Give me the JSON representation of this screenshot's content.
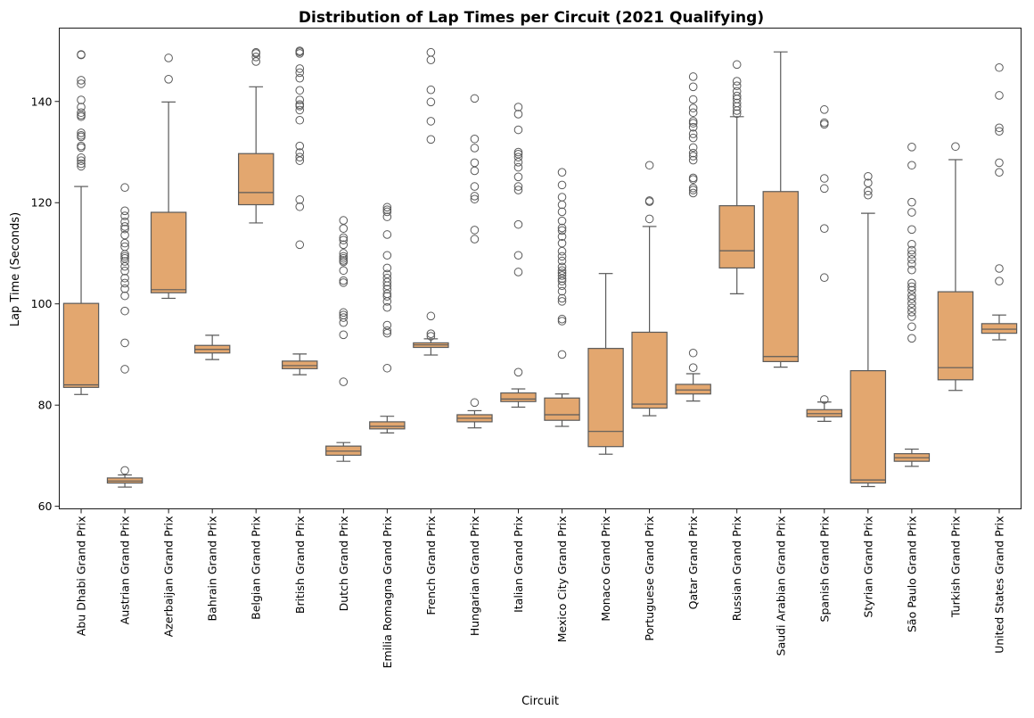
{
  "chart_data": {
    "type": "box",
    "title": "Distribution of Lap Times per Circuit (2021 Qualifying)",
    "xlabel": "Circuit",
    "ylabel": "Lap Time (Seconds)",
    "ylim": [
      59.5,
      154.5
    ],
    "yticks": [
      60,
      80,
      100,
      120,
      140
    ],
    "grid": false,
    "box_color": "#E3A76F",
    "line_color": "#5a5a5a",
    "categories": [
      "Abu Dhabi Grand Prix",
      "Austrian Grand Prix",
      "Azerbaijan Grand Prix",
      "Bahrain Grand Prix",
      "Belgian Grand Prix",
      "British Grand Prix",
      "Dutch Grand Prix",
      "Emilia Romagna Grand Prix",
      "French Grand Prix",
      "Hungarian Grand Prix",
      "Italian Grand Prix",
      "Mexico City Grand Prix",
      "Monaco Grand Prix",
      "Portuguese Grand Prix",
      "Qatar Grand Prix",
      "Russian Grand Prix",
      "Saudi Arabian Grand Prix",
      "Spanish Grand Prix",
      "Styrian Grand Prix",
      "São Paulo Grand Prix",
      "Turkish Grand Prix",
      "United States Grand Prix"
    ],
    "boxes": [
      {
        "whislo": 82.1,
        "q1": 83.5,
        "med": 84.0,
        "q3": 100.1,
        "whishi": 123.2,
        "fliers": [
          149.2,
          149.3,
          144.2,
          143.5,
          140.3,
          138.9,
          137.8,
          137.3,
          137.0,
          133.8,
          133.3,
          133.0,
          131.2,
          130.9,
          128.9,
          128.3,
          127.7,
          127.2
        ]
      },
      {
        "whislo": 63.8,
        "q1": 64.6,
        "med": 65.0,
        "q3": 65.6,
        "whishi": 66.2,
        "fliers": [
          67.1,
          87.1,
          92.3,
          98.6,
          101.6,
          103.0,
          104.1,
          105.1,
          106.5,
          107.4,
          108.4,
          109.0,
          109.4,
          109.8,
          111.3,
          112.0,
          113.6,
          114.8,
          115.3,
          116.2,
          117.4,
          118.4,
          123.0
        ]
      },
      {
        "whislo": 101.1,
        "q1": 102.2,
        "med": 102.8,
        "q3": 118.1,
        "whishi": 139.9,
        "fliers": [
          144.4,
          148.6
        ]
      },
      {
        "whislo": 89.0,
        "q1": 90.3,
        "med": 91.0,
        "q3": 91.8,
        "whishi": 93.8,
        "fliers": []
      },
      {
        "whislo": 116.0,
        "q1": 119.6,
        "med": 122.0,
        "q3": 129.7,
        "whishi": 142.9,
        "fliers": [
          147.9,
          148.8,
          149.5,
          149.7
        ]
      },
      {
        "whislo": 86.0,
        "q1": 87.2,
        "med": 87.8,
        "q3": 88.7,
        "whishi": 90.1,
        "fliers": [
          111.7,
          119.2,
          120.6,
          128.3,
          129.0,
          129.9,
          131.2,
          136.3,
          138.3,
          139.1,
          139.4,
          140.3,
          142.2,
          144.6,
          145.7,
          146.5,
          149.5,
          149.8,
          150.0
        ]
      },
      {
        "whislo": 68.9,
        "q1": 70.1,
        "med": 70.9,
        "q3": 71.9,
        "whishi": 72.6,
        "fliers": [
          84.6,
          93.9,
          96.3,
          97.3,
          97.8,
          98.3,
          104.2,
          104.6,
          106.6,
          108.3,
          108.6,
          109.0,
          109.4,
          110.0,
          111.7,
          112.6,
          113.1,
          114.9,
          116.5
        ]
      },
      {
        "whislo": 74.5,
        "q1": 75.3,
        "med": 75.8,
        "q3": 76.7,
        "whishi": 77.8,
        "fliers": [
          87.3,
          94.2,
          94.7,
          95.8,
          99.3,
          100.5,
          101.5,
          102.0,
          102.9,
          103.6,
          104.3,
          105.1,
          105.9,
          107.1,
          109.6,
          113.7,
          117.2,
          118.2,
          118.6,
          119.1
        ]
      },
      {
        "whislo": 89.9,
        "q1": 91.4,
        "med": 91.9,
        "q3": 92.3,
        "whishi": 93.1,
        "fliers": [
          93.6,
          94.1,
          97.6,
          132.5,
          136.1,
          139.9,
          142.3,
          148.2,
          149.7
        ]
      },
      {
        "whislo": 75.5,
        "q1": 76.7,
        "med": 77.4,
        "q3": 78.1,
        "whishi": 78.9,
        "fliers": [
          80.5,
          112.8,
          114.6,
          120.7,
          121.3,
          123.2,
          126.3,
          127.9,
          130.8,
          132.6,
          140.6
        ]
      },
      {
        "whislo": 79.6,
        "q1": 80.7,
        "med": 81.2,
        "q3": 82.4,
        "whishi": 83.2,
        "fliers": [
          86.5,
          106.3,
          109.6,
          115.7,
          122.5,
          123.2,
          125.1,
          127.0,
          128.0,
          129.0,
          129.6,
          130.0,
          134.4,
          137.5,
          138.9
        ]
      },
      {
        "whislo": 75.8,
        "q1": 77.0,
        "med": 78.1,
        "q3": 81.4,
        "whishi": 82.2,
        "fliers": [
          90.0,
          96.6,
          97.0,
          100.5,
          101.1,
          102.5,
          103.6,
          104.5,
          105.0,
          105.6,
          106.1,
          106.6,
          107.3,
          108.5,
          109.4,
          110.4,
          112.0,
          113.3,
          114.5,
          115.0,
          116.4,
          118.2,
          119.6,
          121.1,
          123.5,
          126.0
        ]
      },
      {
        "whislo": 70.3,
        "q1": 71.8,
        "med": 74.8,
        "q3": 91.2,
        "whishi": 106.0,
        "fliers": []
      },
      {
        "whislo": 77.9,
        "q1": 79.4,
        "med": 80.2,
        "q3": 94.4,
        "whishi": 115.3,
        "fliers": [
          116.8,
          120.2,
          120.4,
          127.4
        ]
      },
      {
        "whislo": 80.8,
        "q1": 82.2,
        "med": 83.0,
        "q3": 84.1,
        "whishi": 86.2,
        "fliers": [
          87.4,
          90.3,
          121.9,
          122.5,
          122.9,
          124.6,
          124.9,
          128.4,
          129.2,
          129.8,
          130.9,
          132.8,
          133.6,
          134.9,
          135.7,
          136.1,
          137.8,
          138.7,
          140.4,
          142.9,
          144.9
        ]
      },
      {
        "whislo": 102.0,
        "q1": 107.1,
        "med": 110.5,
        "q3": 119.4,
        "whishi": 137.0,
        "fliers": [
          137.6,
          138.2,
          139.0,
          139.7,
          140.5,
          141.1,
          142.0,
          143.1,
          144.0,
          147.3
        ]
      },
      {
        "whislo": 87.5,
        "q1": 88.6,
        "med": 89.6,
        "q3": 122.2,
        "whishi": 149.8,
        "fliers": []
      },
      {
        "whislo": 76.8,
        "q1": 77.7,
        "med": 78.3,
        "q3": 79.1,
        "whishi": 80.6,
        "fliers": [
          81.1,
          105.2,
          114.9,
          122.8,
          124.8,
          135.5,
          135.8,
          138.4
        ]
      },
      {
        "whislo": 63.9,
        "q1": 64.6,
        "med": 65.2,
        "q3": 86.8,
        "whishi": 117.9,
        "fliers": [
          121.5,
          122.3,
          123.9,
          125.2
        ]
      },
      {
        "whislo": 67.9,
        "q1": 68.9,
        "med": 69.6,
        "q3": 70.4,
        "whishi": 71.3,
        "fliers": [
          93.2,
          95.5,
          97.5,
          98.4,
          99.2,
          100.1,
          101.0,
          101.7,
          102.7,
          103.4,
          104.1,
          106.7,
          107.9,
          108.8,
          109.8,
          110.6,
          111.8,
          114.7,
          118.1,
          120.1,
          127.4,
          131.0
        ]
      },
      {
        "whislo": 82.9,
        "q1": 85.0,
        "med": 87.4,
        "q3": 102.4,
        "whishi": 128.5,
        "fliers": [
          131.1
        ]
      },
      {
        "whislo": 92.9,
        "q1": 94.2,
        "med": 95.0,
        "q3": 96.1,
        "whishi": 97.8,
        "fliers": [
          104.5,
          107.0,
          126.0,
          127.9,
          134.1,
          134.8,
          141.2,
          146.7
        ]
      }
    ]
  }
}
